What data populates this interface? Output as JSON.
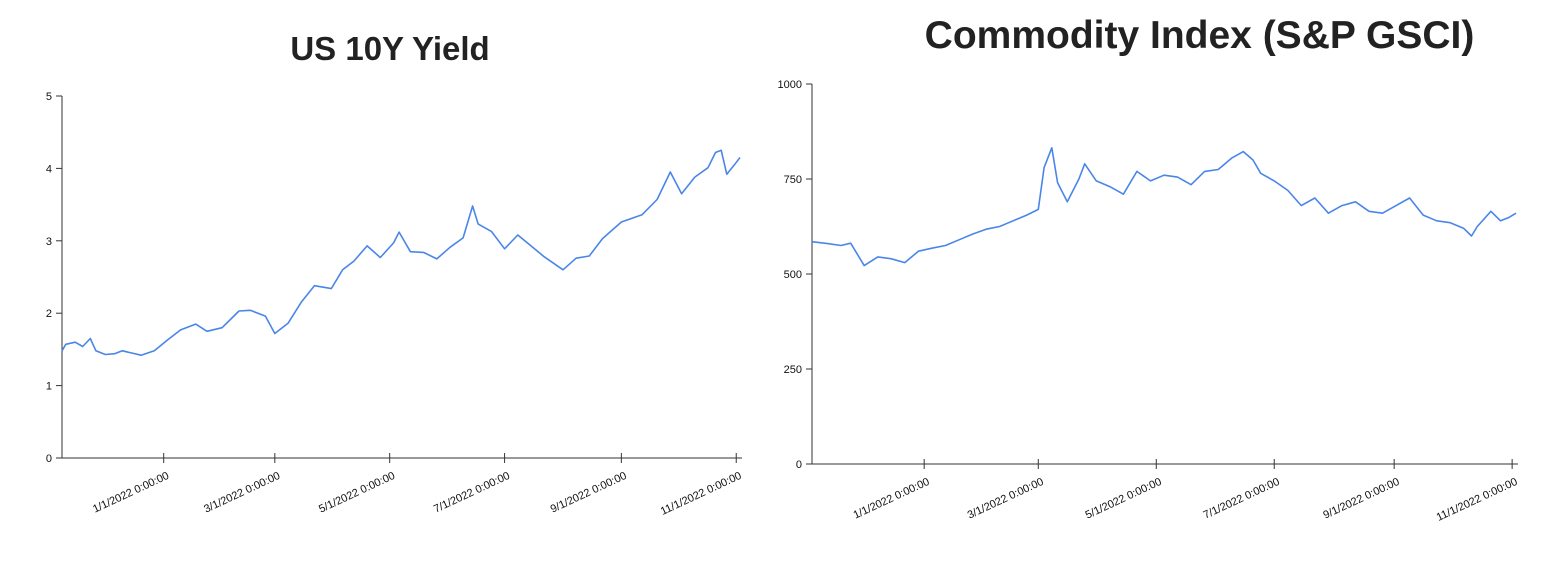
{
  "chart_data": [
    {
      "type": "line",
      "title": "US 10Y Yield",
      "xlabel": "",
      "ylabel": "",
      "ylim": [
        0,
        5
      ],
      "y_ticks": [
        "0",
        "1",
        "2",
        "3",
        "4",
        "5"
      ],
      "x_ticks": [
        {
          "date": "2022-01-01",
          "label": "1/1/2022 0:00:00"
        },
        {
          "date": "2022-03-01",
          "label": "3/1/2022 0:00:00"
        },
        {
          "date": "2022-05-01",
          "label": "5/1/2022 0:00:00"
        },
        {
          "date": "2022-07-01",
          "label": "7/1/2022 0:00:00"
        },
        {
          "date": "2022-09-01",
          "label": "9/1/2022 0:00:00"
        },
        {
          "date": "2022-11-01",
          "label": "11/1/2022 0:00:00"
        }
      ],
      "x_range": [
        "2021-11-08",
        "2022-11-03"
      ],
      "grid": false,
      "line_color": "#4a86e8",
      "series": [
        {
          "points": [
            [
              "2021-11-08",
              1.48
            ],
            [
              "2021-11-10",
              1.57
            ],
            [
              "2021-11-15",
              1.6
            ],
            [
              "2021-11-19",
              1.54
            ],
            [
              "2021-11-23",
              1.65
            ],
            [
              "2021-11-26",
              1.48
            ],
            [
              "2021-12-01",
              1.43
            ],
            [
              "2021-12-06",
              1.44
            ],
            [
              "2021-12-10",
              1.48
            ],
            [
              "2021-12-15",
              1.45
            ],
            [
              "2021-12-20",
              1.42
            ],
            [
              "2021-12-27",
              1.48
            ],
            [
              "2022-01-03",
              1.63
            ],
            [
              "2022-01-10",
              1.77
            ],
            [
              "2022-01-18",
              1.85
            ],
            [
              "2022-01-24",
              1.75
            ],
            [
              "2022-02-01",
              1.8
            ],
            [
              "2022-02-10",
              2.03
            ],
            [
              "2022-02-16",
              2.04
            ],
            [
              "2022-02-24",
              1.96
            ],
            [
              "2022-03-01",
              1.72
            ],
            [
              "2022-03-08",
              1.86
            ],
            [
              "2022-03-15",
              2.15
            ],
            [
              "2022-03-22",
              2.38
            ],
            [
              "2022-03-31",
              2.34
            ],
            [
              "2022-04-06",
              2.6
            ],
            [
              "2022-04-12",
              2.72
            ],
            [
              "2022-04-19",
              2.93
            ],
            [
              "2022-04-26",
              2.77
            ],
            [
              "2022-05-03",
              2.97
            ],
            [
              "2022-05-06",
              3.12
            ],
            [
              "2022-05-12",
              2.85
            ],
            [
              "2022-05-19",
              2.84
            ],
            [
              "2022-05-26",
              2.75
            ],
            [
              "2022-06-02",
              2.91
            ],
            [
              "2022-06-09",
              3.04
            ],
            [
              "2022-06-14",
              3.48
            ],
            [
              "2022-06-17",
              3.23
            ],
            [
              "2022-06-24",
              3.13
            ],
            [
              "2022-07-01",
              2.89
            ],
            [
              "2022-07-08",
              3.08
            ],
            [
              "2022-07-15",
              2.93
            ],
            [
              "2022-07-22",
              2.78
            ],
            [
              "2022-08-01",
              2.6
            ],
            [
              "2022-08-08",
              2.76
            ],
            [
              "2022-08-15",
              2.79
            ],
            [
              "2022-08-22",
              3.03
            ],
            [
              "2022-09-01",
              3.26
            ],
            [
              "2022-09-12",
              3.36
            ],
            [
              "2022-09-20",
              3.57
            ],
            [
              "2022-09-27",
              3.95
            ],
            [
              "2022-10-03",
              3.65
            ],
            [
              "2022-10-10",
              3.88
            ],
            [
              "2022-10-17",
              4.01
            ],
            [
              "2022-10-21",
              4.22
            ],
            [
              "2022-10-24",
              4.25
            ],
            [
              "2022-10-27",
              3.92
            ],
            [
              "2022-10-31",
              4.05
            ],
            [
              "2022-11-03",
              4.15
            ]
          ]
        }
      ]
    },
    {
      "type": "line",
      "title": "Commodity Index (S&P GSCI)",
      "xlabel": "",
      "ylabel": "",
      "ylim": [
        0,
        1000
      ],
      "y_ticks": [
        "0",
        "250",
        "500",
        "750",
        "1000"
      ],
      "x_ticks": [
        {
          "date": "2022-01-01",
          "label": "1/1/2022 0:00:00"
        },
        {
          "date": "2022-03-01",
          "label": "3/1/2022 0:00:00"
        },
        {
          "date": "2022-05-01",
          "label": "5/1/2022 0:00:00"
        },
        {
          "date": "2022-07-01",
          "label": "7/1/2022 0:00:00"
        },
        {
          "date": "2022-09-01",
          "label": "9/1/2022 0:00:00"
        },
        {
          "date": "2022-11-01",
          "label": "11/1/2022 0:00:00"
        }
      ],
      "x_range": [
        "2021-11-04",
        "2022-11-03"
      ],
      "grid": false,
      "line_color": "#4a86e8",
      "series": [
        {
          "points": [
            [
              "2021-11-04",
              585
            ],
            [
              "2021-11-12",
              580
            ],
            [
              "2021-11-19",
              575
            ],
            [
              "2021-11-24",
              581
            ],
            [
              "2021-12-01",
              522
            ],
            [
              "2021-12-08",
              545
            ],
            [
              "2021-12-15",
              540
            ],
            [
              "2021-12-22",
              530
            ],
            [
              "2021-12-29",
              560
            ],
            [
              "2022-01-05",
              568
            ],
            [
              "2022-01-12",
              575
            ],
            [
              "2022-01-19",
              590
            ],
            [
              "2022-01-26",
              605
            ],
            [
              "2022-02-02",
              618
            ],
            [
              "2022-02-09",
              625
            ],
            [
              "2022-02-16",
              640
            ],
            [
              "2022-02-23",
              655
            ],
            [
              "2022-03-01",
              670
            ],
            [
              "2022-03-04",
              780
            ],
            [
              "2022-03-08",
              832
            ],
            [
              "2022-03-11",
              740
            ],
            [
              "2022-03-16",
              690
            ],
            [
              "2022-03-22",
              750
            ],
            [
              "2022-03-25",
              790
            ],
            [
              "2022-03-31",
              745
            ],
            [
              "2022-04-07",
              730
            ],
            [
              "2022-04-14",
              710
            ],
            [
              "2022-04-21",
              770
            ],
            [
              "2022-04-28",
              745
            ],
            [
              "2022-05-05",
              760
            ],
            [
              "2022-05-12",
              755
            ],
            [
              "2022-05-19",
              735
            ],
            [
              "2022-05-26",
              770
            ],
            [
              "2022-06-02",
              775
            ],
            [
              "2022-06-09",
              805
            ],
            [
              "2022-06-15",
              822
            ],
            [
              "2022-06-20",
              800
            ],
            [
              "2022-06-24",
              765
            ],
            [
              "2022-07-01",
              745
            ],
            [
              "2022-07-08",
              720
            ],
            [
              "2022-07-15",
              680
            ],
            [
              "2022-07-22",
              700
            ],
            [
              "2022-07-29",
              660
            ],
            [
              "2022-08-05",
              680
            ],
            [
              "2022-08-12",
              690
            ],
            [
              "2022-08-19",
              665
            ],
            [
              "2022-08-26",
              660
            ],
            [
              "2022-09-02",
              680
            ],
            [
              "2022-09-09",
              700
            ],
            [
              "2022-09-16",
              655
            ],
            [
              "2022-09-23",
              640
            ],
            [
              "2022-09-30",
              635
            ],
            [
              "2022-10-07",
              620
            ],
            [
              "2022-10-11",
              600
            ],
            [
              "2022-10-14",
              625
            ],
            [
              "2022-10-21",
              665
            ],
            [
              "2022-10-26",
              640
            ],
            [
              "2022-10-30",
              648
            ],
            [
              "2022-11-03",
              660
            ]
          ]
        }
      ]
    }
  ]
}
